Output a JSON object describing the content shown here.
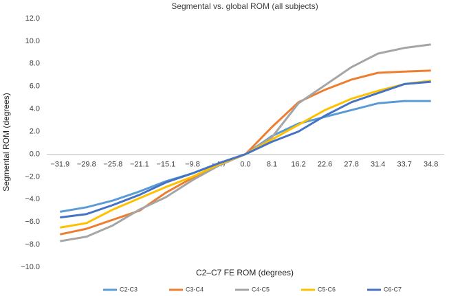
{
  "chart_data": {
    "type": "line",
    "title": "Segmental vs. global ROM (all subjects)",
    "x_label": "C2–C7 FE ROM (degrees)",
    "y_label": "Segmental ROM (degrees)",
    "categories": [
      "−31.9",
      "−29.8",
      "−25.8",
      "−21.1",
      "−15.1",
      "−9.8",
      "−4.7",
      "0.0",
      "8.1",
      "16.2",
      "22.6",
      "27.8",
      "31.4",
      "33.7",
      "34.8"
    ],
    "ylim": [
      -10,
      12
    ],
    "yticks": [
      {
        "value": -10,
        "label": "−10.0"
      },
      {
        "value": -8,
        "label": "−8.0"
      },
      {
        "value": -6,
        "label": "−6.0"
      },
      {
        "value": -4,
        "label": "−4.0"
      },
      {
        "value": -2,
        "label": "−2.0"
      },
      {
        "value": 0,
        "label": "0.0"
      },
      {
        "value": 2,
        "label": "2.0"
      },
      {
        "value": 4,
        "label": "4.0"
      },
      {
        "value": 6,
        "label": "6.0"
      },
      {
        "value": 8,
        "label": "8.0"
      },
      {
        "value": 10,
        "label": "10.0"
      },
      {
        "value": 12,
        "label": "12.0"
      }
    ],
    "grid": false,
    "legend": "bottom",
    "series": [
      {
        "name": "C2-C3",
        "color": "#5b9bd5",
        "values": [
          -5.1,
          -4.7,
          -4.1,
          -3.3,
          -2.4,
          -1.7,
          -0.8,
          0,
          1.6,
          2.7,
          3.3,
          3.9,
          4.5,
          4.7,
          4.7
        ]
      },
      {
        "name": "C3-C4",
        "color": "#ed7d31",
        "values": [
          -7.1,
          -6.6,
          -5.8,
          -5.0,
          -3.4,
          -2.1,
          -0.9,
          0,
          2.4,
          4.6,
          5.7,
          6.6,
          7.2,
          7.3,
          7.4
        ]
      },
      {
        "name": "C4-C5",
        "color": "#a5a5a5",
        "values": [
          -7.7,
          -7.3,
          -6.3,
          -4.9,
          -3.8,
          -2.3,
          -1.0,
          0,
          1.5,
          4.5,
          6.1,
          7.7,
          8.9,
          9.4,
          9.7
        ]
      },
      {
        "name": "C5-C6",
        "color": "#ffc000",
        "values": [
          -6.5,
          -6.1,
          -4.9,
          -3.9,
          -2.9,
          -2.0,
          -0.9,
          0,
          1.3,
          2.6,
          3.9,
          4.9,
          5.6,
          6.2,
          6.5
        ]
      },
      {
        "name": "C6-C7",
        "color": "#4472c4",
        "values": [
          -5.6,
          -5.3,
          -4.5,
          -3.6,
          -2.5,
          -1.7,
          -0.8,
          0,
          1.1,
          2.0,
          3.4,
          4.6,
          5.4,
          6.2,
          6.4
        ]
      }
    ]
  }
}
